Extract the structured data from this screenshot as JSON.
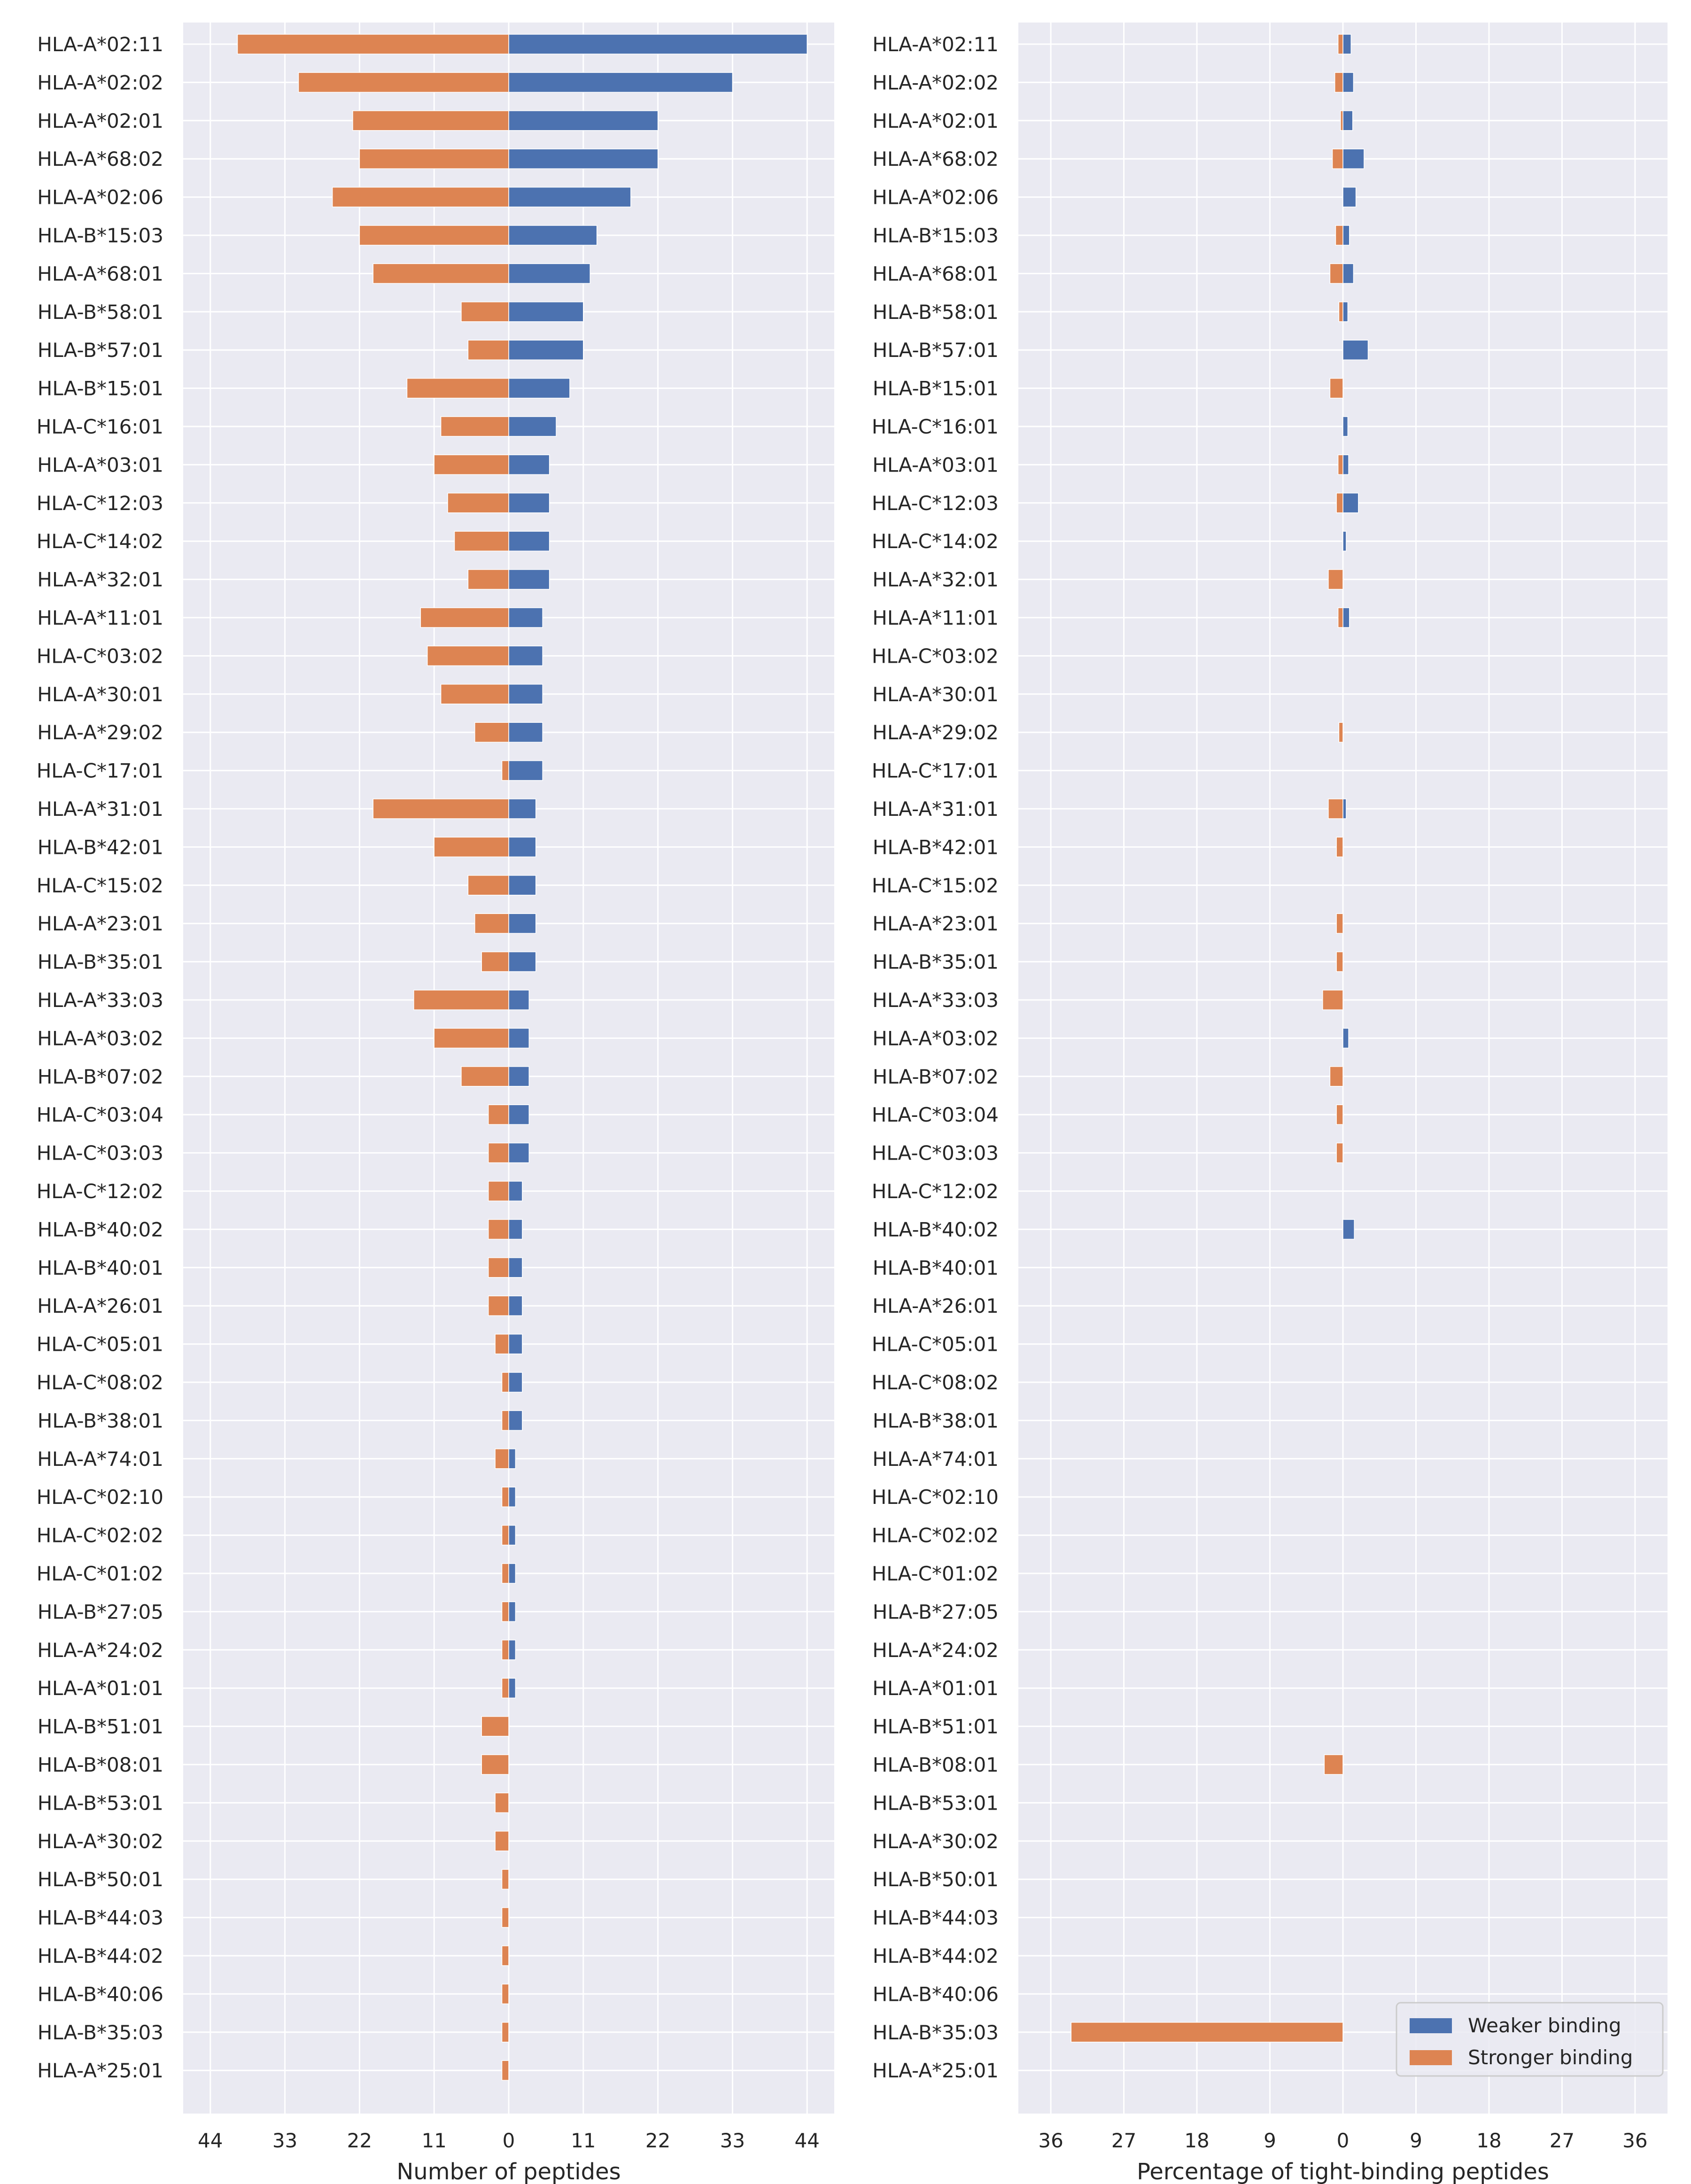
{
  "colors": {
    "weaker": "#4C72B0",
    "stronger": "#DD8452",
    "panel_bg": "#EAEAF2",
    "grid": "#FFFFFF"
  },
  "legend": {
    "weaker": "Weaker binding",
    "stronger": "Stronger binding",
    "placement": "lower-right of right panel"
  },
  "chart_data": [
    {
      "type": "bar",
      "orientation": "horizontal-diverging",
      "xlabel": "Number of peptides",
      "ylabel": "",
      "xlim": [
        -48,
        48
      ],
      "xticks": [
        -44,
        -33,
        -22,
        -11,
        0,
        11,
        22,
        33,
        44
      ],
      "xtick_labels": [
        "44",
        "33",
        "22",
        "11",
        "0",
        "11",
        "22",
        "33",
        "44"
      ],
      "grid": true,
      "categories": [
        "HLA-A*02:11",
        "HLA-A*02:02",
        "HLA-A*02:01",
        "HLA-A*68:02",
        "HLA-A*02:06",
        "HLA-B*15:03",
        "HLA-A*68:01",
        "HLA-B*58:01",
        "HLA-B*57:01",
        "HLA-B*15:01",
        "HLA-C*16:01",
        "HLA-A*03:01",
        "HLA-C*12:03",
        "HLA-C*14:02",
        "HLA-A*32:01",
        "HLA-A*11:01",
        "HLA-C*03:02",
        "HLA-A*30:01",
        "HLA-A*29:02",
        "HLA-C*17:01",
        "HLA-A*31:01",
        "HLA-B*42:01",
        "HLA-C*15:02",
        "HLA-A*23:01",
        "HLA-B*35:01",
        "HLA-A*33:03",
        "HLA-A*03:02",
        "HLA-B*07:02",
        "HLA-C*03:04",
        "HLA-C*03:03",
        "HLA-C*12:02",
        "HLA-B*40:02",
        "HLA-B*40:01",
        "HLA-A*26:01",
        "HLA-C*05:01",
        "HLA-C*08:02",
        "HLA-B*38:01",
        "HLA-A*74:01",
        "HLA-C*02:10",
        "HLA-C*02:02",
        "HLA-C*01:02",
        "HLA-B*27:05",
        "HLA-A*24:02",
        "HLA-A*01:01",
        "HLA-B*51:01",
        "HLA-B*08:01",
        "HLA-B*53:01",
        "HLA-A*30:02",
        "HLA-B*50:01",
        "HLA-B*44:03",
        "HLA-B*44:02",
        "HLA-B*40:06",
        "HLA-B*35:03",
        "HLA-A*25:01"
      ],
      "series": [
        {
          "name": "Weaker binding",
          "direction": "right",
          "values": [
            44,
            33,
            22,
            22,
            18,
            13,
            12,
            11,
            11,
            9,
            7,
            6,
            6,
            6,
            6,
            5,
            5,
            5,
            5,
            5,
            4,
            4,
            4,
            4,
            4,
            3,
            3,
            3,
            3,
            3,
            2,
            2,
            2,
            2,
            2,
            2,
            2,
            1,
            1,
            1,
            1,
            1,
            1,
            1,
            0,
            0,
            0,
            0,
            0,
            0,
            0,
            0,
            0,
            0
          ]
        },
        {
          "name": "Stronger binding",
          "direction": "left",
          "values": [
            40,
            31,
            23,
            22,
            26,
            22,
            20,
            7,
            6,
            15,
            10,
            11,
            9,
            8,
            6,
            13,
            12,
            10,
            5,
            1,
            20,
            11,
            6,
            5,
            4,
            14,
            11,
            7,
            3,
            3,
            3,
            3,
            3,
            3,
            2,
            1,
            1,
            2,
            1,
            1,
            1,
            1,
            1,
            1,
            4,
            4,
            2,
            2,
            1,
            1,
            1,
            1,
            1,
            1
          ]
        }
      ]
    },
    {
      "type": "bar",
      "orientation": "horizontal-diverging",
      "xlabel": "Percentage of tight-binding peptides",
      "ylabel": "",
      "xlim": [
        -40,
        40
      ],
      "xticks": [
        -36,
        -27,
        -18,
        -9,
        0,
        9,
        18,
        27,
        36
      ],
      "xtick_labels": [
        "36",
        "27",
        "18",
        "9",
        "0",
        "9",
        "18",
        "27",
        "36"
      ],
      "grid": true,
      "categories": [
        "HLA-A*02:11",
        "HLA-A*02:02",
        "HLA-A*02:01",
        "HLA-A*68:02",
        "HLA-A*02:06",
        "HLA-B*15:03",
        "HLA-A*68:01",
        "HLA-B*58:01",
        "HLA-B*57:01",
        "HLA-B*15:01",
        "HLA-C*16:01",
        "HLA-A*03:01",
        "HLA-C*12:03",
        "HLA-C*14:02",
        "HLA-A*32:01",
        "HLA-A*11:01",
        "HLA-C*03:02",
        "HLA-A*30:01",
        "HLA-A*29:02",
        "HLA-C*17:01",
        "HLA-A*31:01",
        "HLA-B*42:01",
        "HLA-C*15:02",
        "HLA-A*23:01",
        "HLA-B*35:01",
        "HLA-A*33:03",
        "HLA-A*03:02",
        "HLA-B*07:02",
        "HLA-C*03:04",
        "HLA-C*03:03",
        "HLA-C*12:02",
        "HLA-B*40:02",
        "HLA-B*40:01",
        "HLA-A*26:01",
        "HLA-C*05:01",
        "HLA-C*08:02",
        "HLA-B*38:01",
        "HLA-A*74:01",
        "HLA-C*02:10",
        "HLA-C*02:02",
        "HLA-C*01:02",
        "HLA-B*27:05",
        "HLA-A*24:02",
        "HLA-A*01:01",
        "HLA-B*51:01",
        "HLA-B*08:01",
        "HLA-B*53:01",
        "HLA-A*30:02",
        "HLA-B*50:01",
        "HLA-B*44:03",
        "HLA-B*44:02",
        "HLA-B*40:06",
        "HLA-B*35:03",
        "HLA-A*25:01"
      ],
      "series": [
        {
          "name": "Weaker binding",
          "direction": "right",
          "values": [
            1.0,
            1.3,
            1.2,
            2.6,
            1.6,
            0.8,
            1.3,
            0.6,
            3.1,
            0,
            0.6,
            0.7,
            1.9,
            0.4,
            0,
            0.8,
            0,
            0,
            0,
            0,
            0.4,
            0,
            0,
            0,
            0,
            0,
            0.7,
            0,
            0,
            0,
            0,
            1.4,
            0,
            0,
            0,
            0,
            0,
            0,
            0,
            0,
            0,
            0,
            0,
            0,
            0,
            0,
            0,
            0,
            0,
            0,
            0,
            0,
            0,
            0
          ]
        },
        {
          "name": "Stronger binding",
          "direction": "left",
          "values": [
            0.6,
            1.0,
            0.3,
            1.3,
            0,
            0.9,
            1.6,
            0.5,
            0,
            1.6,
            0,
            0.6,
            0.8,
            0,
            1.8,
            0.6,
            0,
            0,
            0.5,
            0,
            1.8,
            0.8,
            0,
            0.8,
            0.8,
            2.5,
            0,
            1.6,
            0.8,
            0.8,
            0,
            0,
            0,
            0,
            0,
            0,
            0,
            0,
            0,
            0,
            0,
            0,
            0,
            0,
            0,
            2.3,
            0,
            0,
            0,
            0,
            0,
            0,
            33.5,
            0
          ]
        }
      ]
    }
  ]
}
